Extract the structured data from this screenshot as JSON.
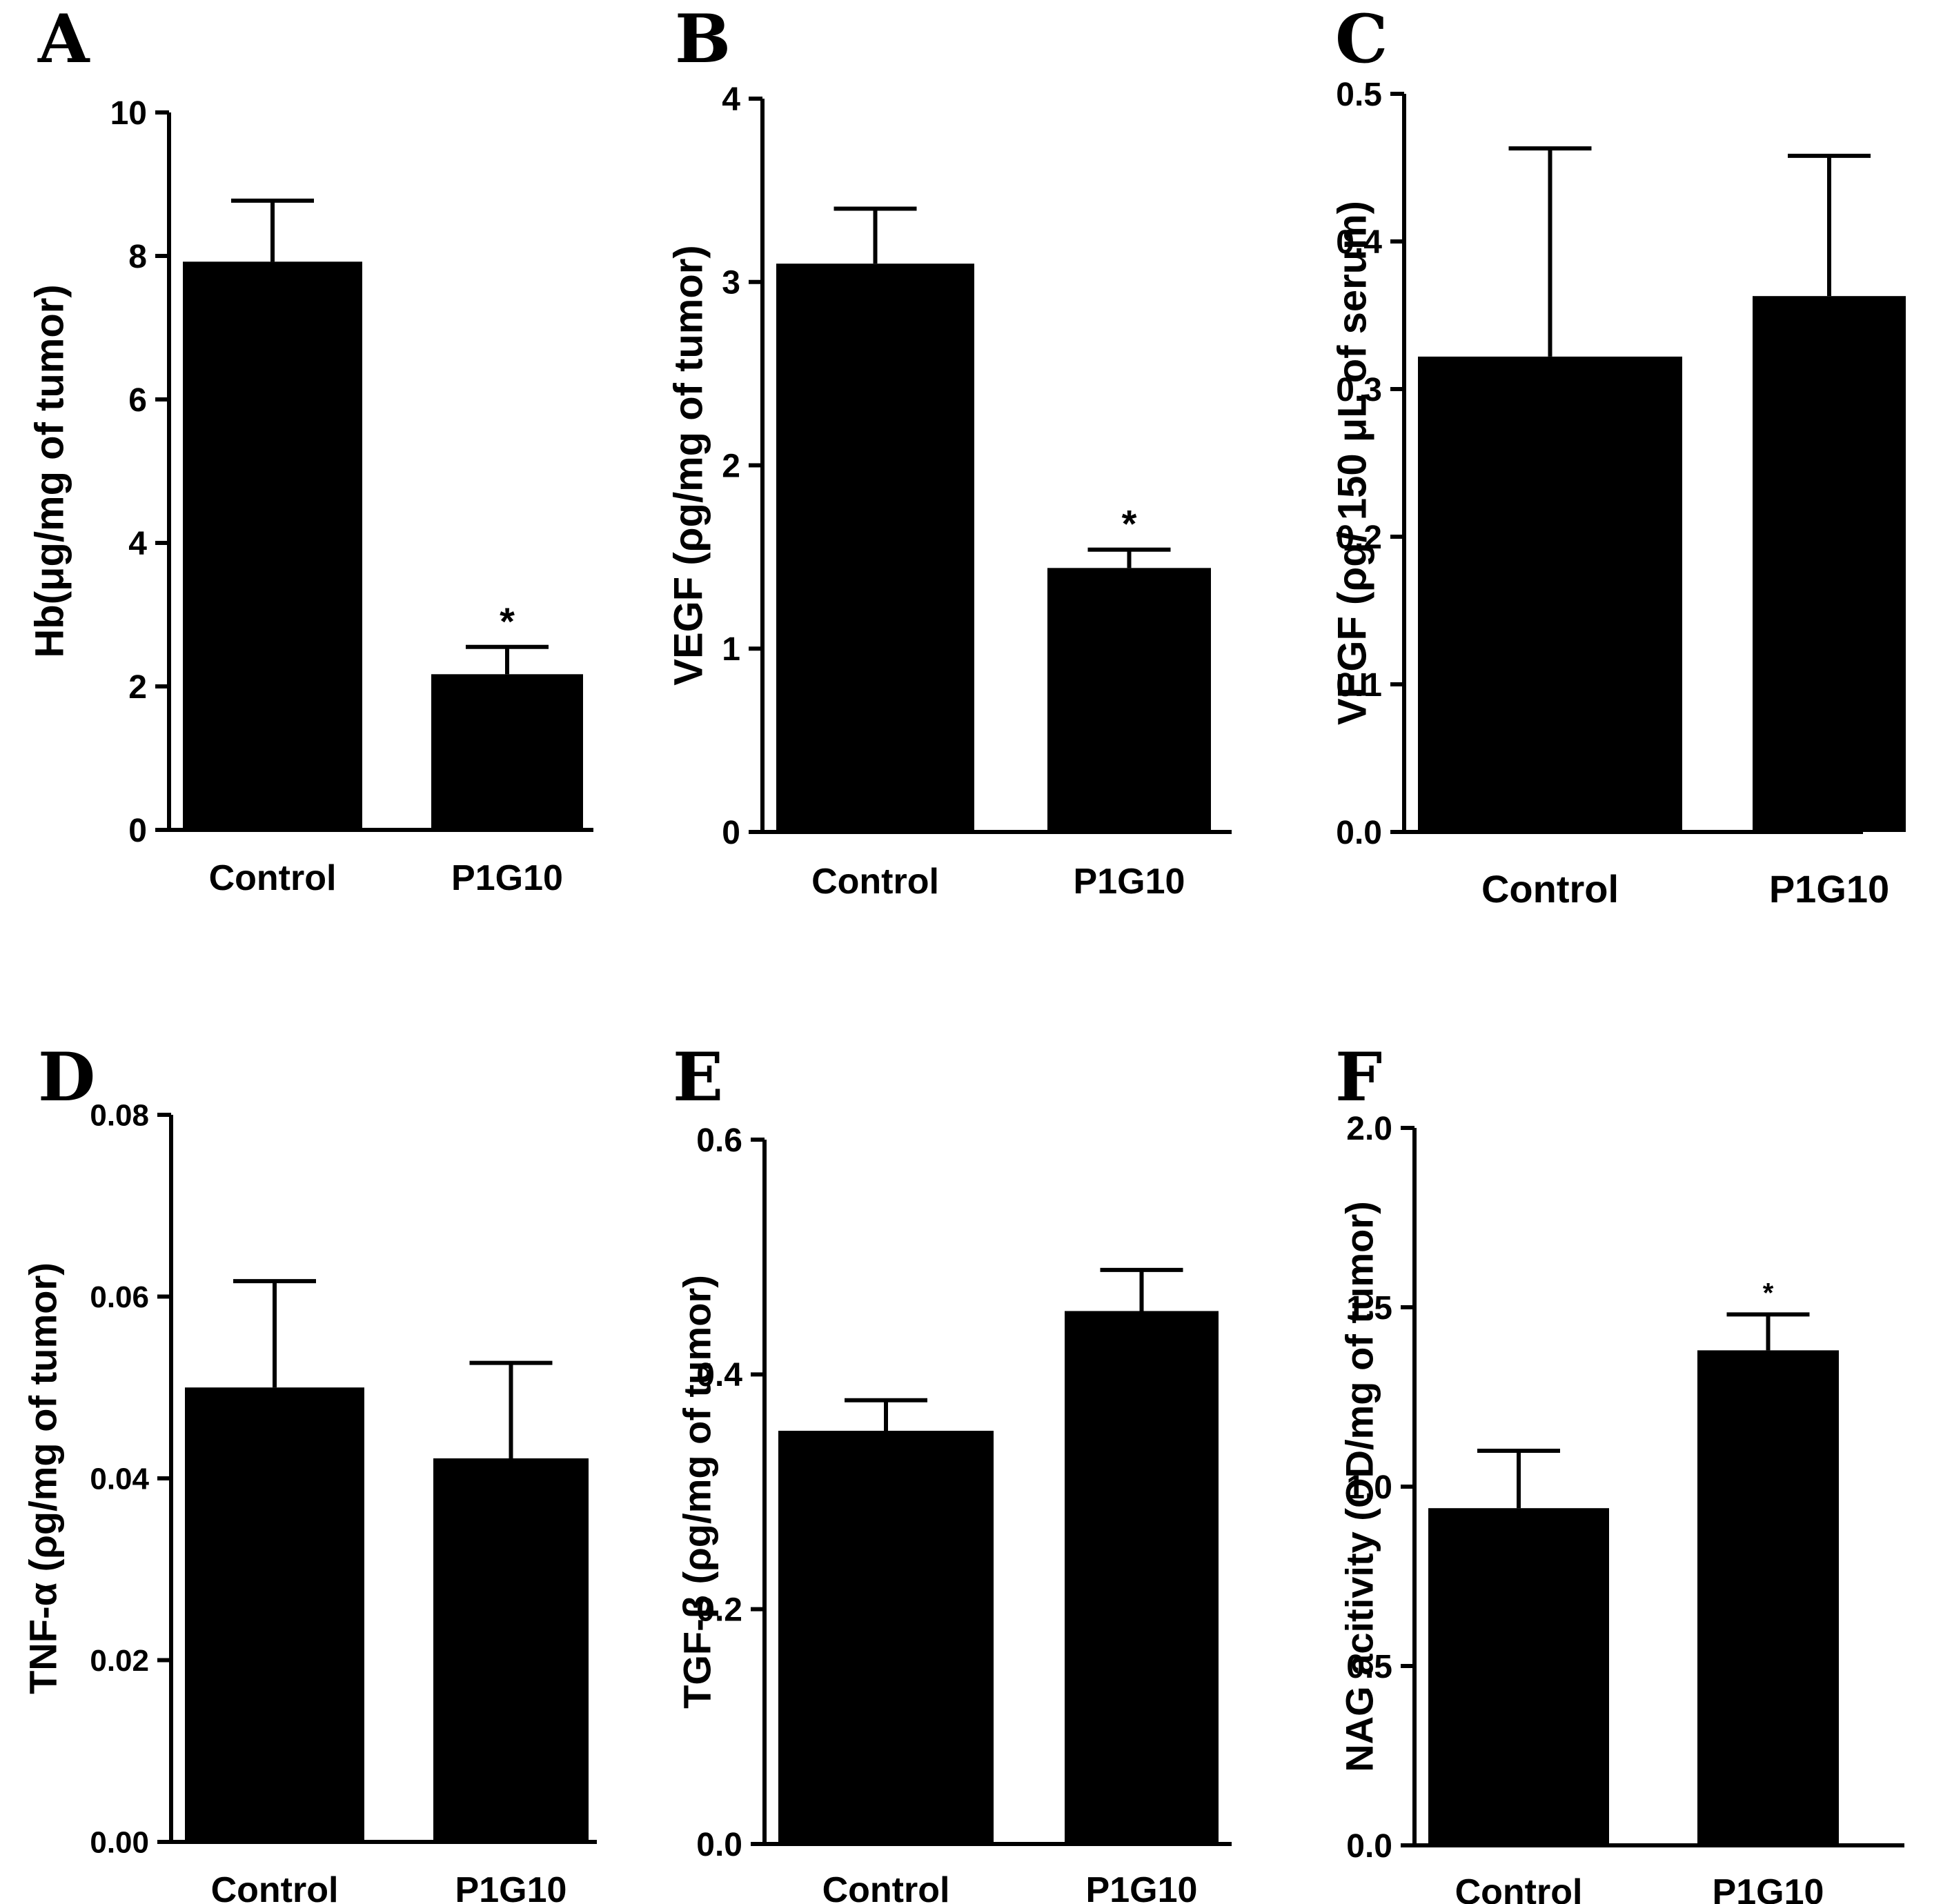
{
  "chart_data": [
    {
      "type": "bar",
      "panel": "A",
      "categories": [
        "Control",
        "P1G10"
      ],
      "values": [
        7.92,
        2.17
      ],
      "errors": [
        0.85,
        0.38
      ],
      "significance": [
        "",
        "*"
      ],
      "ylabel": "Hb(μg/mg of tumor)",
      "ylim": [
        0,
        10
      ],
      "yticks": [
        0,
        2,
        4,
        6,
        8,
        10
      ],
      "tick_labels": [
        "0",
        "2",
        "4",
        "6",
        "8",
        "10"
      ]
    },
    {
      "type": "bar",
      "panel": "B",
      "categories": [
        "Control",
        "P1G10"
      ],
      "values": [
        3.1,
        1.44
      ],
      "errors": [
        0.3,
        0.1
      ],
      "significance": [
        "",
        "*"
      ],
      "ylabel": "VEGF (ρg/mg of tumor)",
      "ylim": [
        0,
        4
      ],
      "yticks": [
        0,
        1,
        2,
        3,
        4
      ],
      "tick_labels": [
        "0",
        "1",
        "2",
        "3",
        "4"
      ]
    },
    {
      "type": "bar",
      "panel": "C",
      "categories": [
        "Control",
        "P1G10"
      ],
      "values": [
        0.322,
        0.363
      ],
      "errors": [
        0.141,
        0.095
      ],
      "significance": [
        "",
        ""
      ],
      "ylabel": "VEGF (ρg/ 150 μL of serum)",
      "ylim": [
        0,
        0.5
      ],
      "yticks": [
        0,
        0.1,
        0.2,
        0.3,
        0.4,
        0.5
      ],
      "tick_labels": [
        "0.0",
        "0.1",
        "0.2",
        "0.3",
        "0.4",
        "0.5"
      ]
    },
    {
      "type": "bar",
      "panel": "D",
      "categories": [
        "Control",
        "P1G10"
      ],
      "values": [
        0.05,
        0.0422
      ],
      "errors": [
        0.0117,
        0.0105
      ],
      "significance": [
        "",
        ""
      ],
      "ylabel": "TNF-α (ρg/mg of tumor)",
      "ylim": [
        0,
        0.08
      ],
      "yticks": [
        0,
        0.02,
        0.04,
        0.06,
        0.08
      ],
      "tick_labels": [
        "0.00",
        "0.02",
        "0.04",
        "0.06",
        "0.08"
      ]
    },
    {
      "type": "bar",
      "panel": "E",
      "categories": [
        "Control",
        "P1G10"
      ],
      "values": [
        0.352,
        0.454
      ],
      "errors": [
        0.026,
        0.035
      ],
      "significance": [
        "",
        ""
      ],
      "ylabel": "TGF-β (ρg/mg of tumor)",
      "ylim": [
        0,
        0.6
      ],
      "yticks": [
        0,
        0.2,
        0.4,
        0.6
      ],
      "tick_labels": [
        "0.0",
        "0.2",
        "0.4",
        "0.6"
      ]
    },
    {
      "type": "bar",
      "panel": "F",
      "categories": [
        "Control",
        "P1G10"
      ],
      "values": [
        0.94,
        1.38
      ],
      "errors": [
        0.16,
        0.1
      ],
      "significance": [
        "",
        "*"
      ],
      "ylabel": "NAG acitivity (OD/mg of tumor)",
      "ylim": [
        0,
        2
      ],
      "yticks": [
        0,
        0.5,
        1,
        1.5,
        2
      ],
      "tick_labels": [
        "0.0",
        "0.5",
        "1.0",
        "1.5",
        "2.0"
      ]
    }
  ],
  "colors": {
    "bar": "#000000",
    "axis": "#000000",
    "background": "#ffffff"
  }
}
